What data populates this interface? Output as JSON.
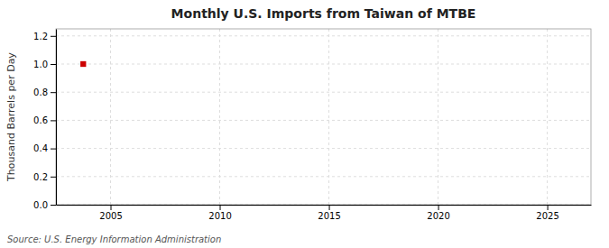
{
  "chart_data": {
    "type": "scatter",
    "title": "Monthly U.S. Imports from Taiwan of MTBE",
    "ylabel": "Thousand Barrels per Day",
    "annotations": [
      "Source: U.S. Energy Information Administration"
    ],
    "x": [
      2003.75
    ],
    "values": [
      1.0
    ],
    "color": "#cc0000",
    "marker": "square",
    "xlim": [
      2002.5,
      2027
    ],
    "ylim": [
      0.0,
      1.25
    ],
    "xticks": [
      2005,
      2010,
      2015,
      2020,
      2025
    ],
    "yticks": [
      {
        "value": 0.0,
        "label": "0.0"
      },
      0.2,
      0.4,
      0.6,
      0.8,
      {
        "value": 1.0,
        "label": "1.0"
      },
      1.2
    ],
    "grid": true
  }
}
